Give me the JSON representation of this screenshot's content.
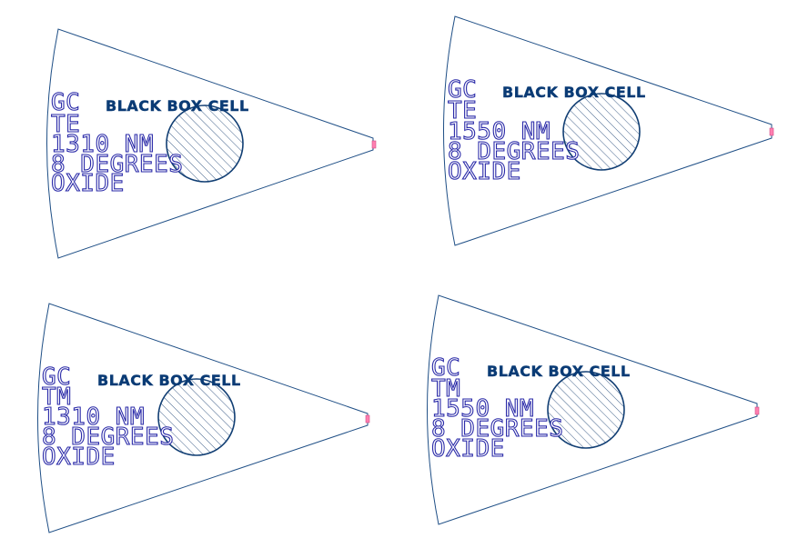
{
  "cells": [
    {
      "title": "BLACK BOX CELL",
      "lines": [
        "GC",
        "TE",
        "1310 NM",
        "8 DEGREES",
        "OXIDE"
      ]
    },
    {
      "title": "BLACK BOX CELL",
      "lines": [
        "GC",
        "TE",
        "1550 NM",
        "8 DEGREES",
        "OXIDE"
      ]
    },
    {
      "title": "BLACK BOX CELL",
      "lines": [
        "GC",
        "TM",
        "1310 NM",
        "8 DEGREES",
        "OXIDE"
      ]
    },
    {
      "title": "BLACK BOX CELL",
      "lines": [
        "GC",
        "TM",
        "1550 NM",
        "8 DEGREES",
        "OXIDE"
      ]
    }
  ],
  "colors": {
    "outline": "#1f4f86",
    "circle": "#123f74",
    "label": "#0a3b75",
    "text_stroke": "#2a2aa8",
    "port": "#ff7fb0"
  }
}
